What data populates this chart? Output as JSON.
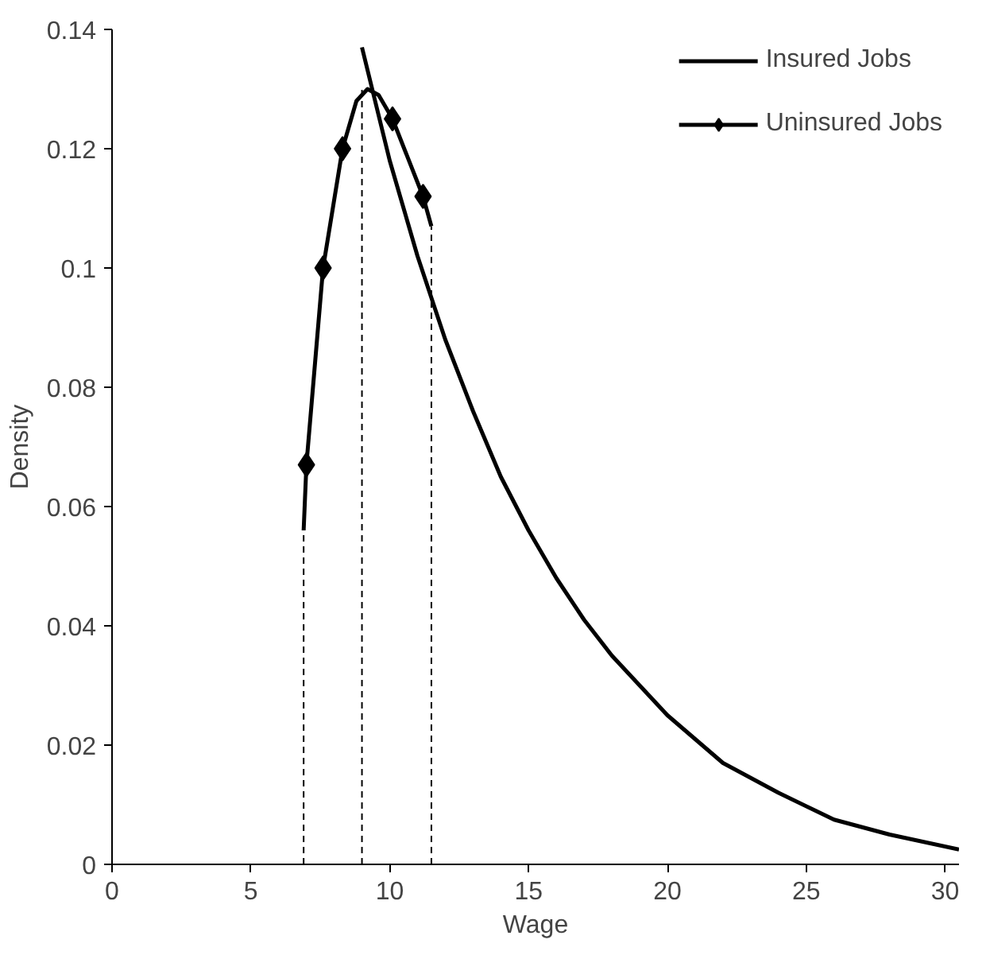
{
  "chart_data": {
    "type": "line",
    "xlabel": "Wage",
    "ylabel": "Density",
    "xlim": [
      0,
      30.5
    ],
    "ylim": [
      0,
      0.14
    ],
    "xticks": [
      0,
      5,
      10,
      15,
      20,
      25,
      30
    ],
    "yticks": [
      0,
      0.02,
      0.04,
      0.06,
      0.08,
      0.1,
      0.12,
      0.14
    ],
    "grid": false,
    "legend": "top right",
    "series": [
      {
        "name": "Insured Jobs",
        "color": "#000000",
        "x": [
          9.0,
          10,
          11,
          12,
          13,
          14,
          15,
          16,
          17,
          18,
          20,
          22,
          24,
          26,
          28,
          30.5
        ],
        "values": [
          0.137,
          0.118,
          0.102,
          0.088,
          0.076,
          0.065,
          0.056,
          0.048,
          0.041,
          0.035,
          0.025,
          0.017,
          0.012,
          0.0075,
          0.005,
          0.0025
        ]
      },
      {
        "color": "#000000",
        "x": [
          6.9,
          7.0,
          7.6,
          8.3,
          8.8,
          9.2,
          9.6,
          10.1,
          11.2,
          11.5
        ],
        "values": [
          0.056,
          0.067,
          0.1,
          0.12,
          0.128,
          0.13,
          0.129,
          0.125,
          0.112,
          0.107
        ]
      },
      {
        "name": "Uninsured Jobs",
        "type": "scatter",
        "marker": "diamond",
        "color": "#000000",
        "x": [
          7.0,
          7.6,
          8.3,
          10.1,
          11.2
        ],
        "values": [
          0.067,
          0.1,
          0.12,
          0.125,
          0.112
        ]
      },
      {
        "color": "#000000",
        "line_style": "dashed",
        "x": [
          6.9,
          6.9
        ],
        "values": [
          0,
          0.056
        ]
      },
      {
        "color": "#000000",
        "line_style": "dashed",
        "x": [
          9.0,
          9.0
        ],
        "values": [
          0,
          0.13
        ]
      },
      {
        "color": "#000000",
        "line_style": "dashed",
        "x": [
          11.5,
          11.5
        ],
        "values": [
          0,
          0.107
        ]
      }
    ]
  }
}
